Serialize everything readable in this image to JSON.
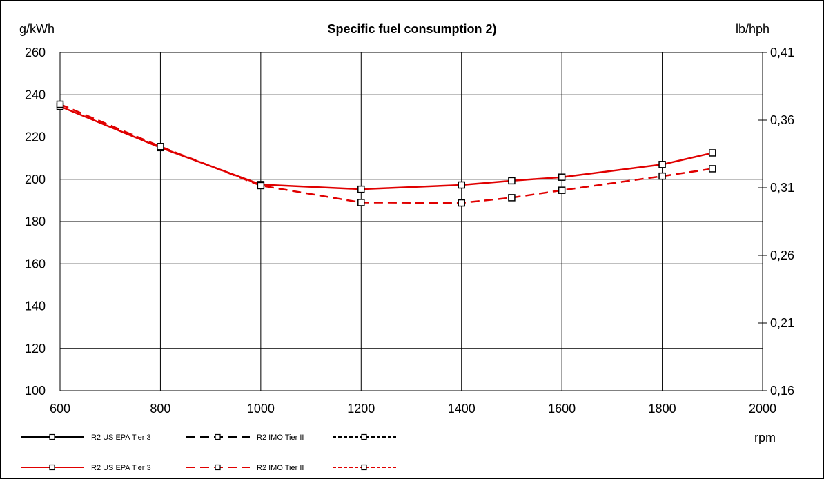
{
  "chart_data": {
    "type": "line",
    "title": "Specific fuel consumption 2)",
    "ylabel_left": "g/kWh",
    "ylabel_right": "lb/hph",
    "xlabel": "rpm",
    "xlim": [
      600,
      2000
    ],
    "ylim_left": [
      100,
      260
    ],
    "ylim_right": [
      0.16,
      0.41
    ],
    "x_ticks": [
      "600",
      "800",
      "1000",
      "1200",
      "1400",
      "1600",
      "1800",
      "2000"
    ],
    "y_ticks_left": [
      "100",
      "120",
      "140",
      "160",
      "180",
      "200",
      "220",
      "240",
      "260"
    ],
    "y_ticks_right": [
      "0,16",
      "0,21",
      "0,26",
      "0,31",
      "0,36",
      "0,41"
    ],
    "grid": true,
    "legend_placement": "bottom-left",
    "series": [
      {
        "name": "R2 US EPA Tier 3",
        "color": "#e00000",
        "style": "solid",
        "x": [
          600,
          800,
          1000,
          1200,
          1400,
          1500,
          1600,
          1800,
          1900
        ],
        "y": [
          234.5,
          215,
          197.5,
          195.3,
          197.3,
          199.3,
          201,
          207,
          212.5
        ]
      },
      {
        "name": "R2 IMO Tier II",
        "color": "#e00000",
        "style": "dashed",
        "x": [
          600,
          800,
          1000,
          1200,
          1400,
          1500,
          1600,
          1800,
          1900
        ],
        "y": [
          235.5,
          215.5,
          197,
          189,
          188.8,
          191.3,
          194.8,
          201.5,
          205
        ]
      }
    ],
    "legend": [
      {
        "name": "R2 US EPA Tier 3",
        "color": "#000000",
        "style": "solid"
      },
      {
        "name": "R2 IMO Tier II",
        "color": "#000000",
        "style": "dashed"
      },
      {
        "name": "",
        "color": "#000000",
        "style": "dotted"
      },
      {
        "name": "R2 US EPA Tier 3",
        "color": "#e00000",
        "style": "solid"
      },
      {
        "name": "R2 IMO Tier II",
        "color": "#e00000",
        "style": "dashed"
      },
      {
        "name": "",
        "color": "#e00000",
        "style": "dotted"
      }
    ]
  }
}
